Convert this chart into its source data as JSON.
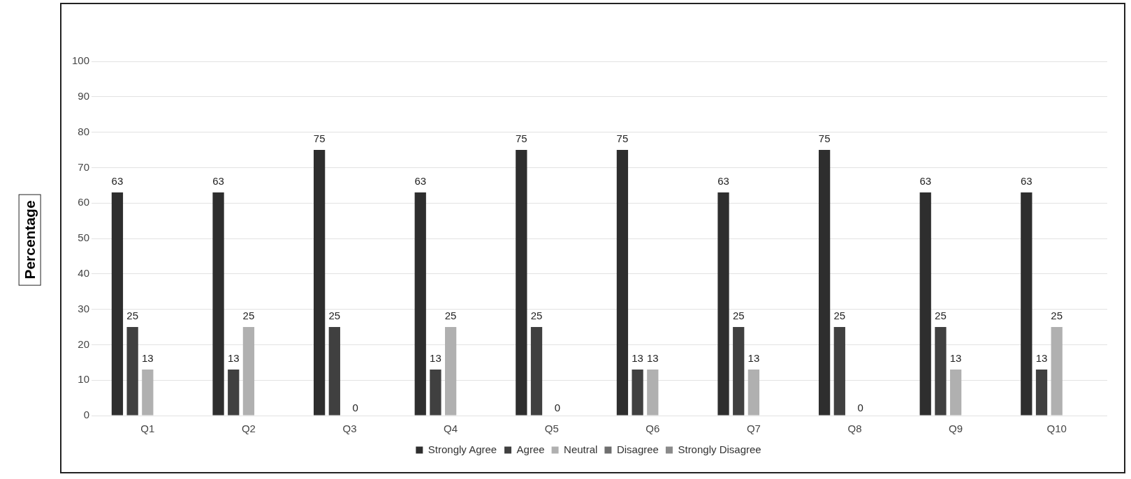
{
  "chart_data": {
    "type": "bar",
    "ylabel": "Percentage",
    "categories": [
      "Q1",
      "Q2",
      "Q3",
      "Q4",
      "Q5",
      "Q6",
      "Q7",
      "Q8",
      "Q9",
      "Q10"
    ],
    "series": [
      {
        "name": "Strongly Agree",
        "color": "#2e2e2e",
        "values": [
          63,
          63,
          75,
          63,
          75,
          75,
          63,
          75,
          63,
          63
        ],
        "value_labels": [
          "63",
          "63",
          "75",
          "63",
          "75",
          "75",
          "63",
          "75",
          "63",
          "63"
        ]
      },
      {
        "name": "Agree",
        "color": "#404040",
        "values": [
          25,
          13,
          25,
          13,
          25,
          13,
          25,
          25,
          25,
          13
        ],
        "value_labels": [
          "25",
          "13",
          "25",
          "13",
          "25",
          "13",
          "25",
          "25",
          "25",
          "13"
        ]
      },
      {
        "name": "Neutral",
        "color": "#b0b0b0",
        "values": [
          13,
          25,
          0,
          25,
          0,
          13,
          13,
          0,
          13,
          25
        ],
        "value_labels": [
          "13",
          "25",
          "0",
          "25",
          "0",
          "13",
          "13",
          "0",
          "13",
          "25"
        ]
      },
      {
        "name": "Disagree",
        "color": "#6e6e6e",
        "values": [
          0,
          0,
          0,
          0,
          0,
          0,
          0,
          0,
          0,
          0
        ]
      },
      {
        "name": "Strongly Disagree",
        "color": "#8a8a8a",
        "values": [
          0,
          0,
          0,
          0,
          0,
          0,
          0,
          0,
          0,
          0
        ]
      }
    ],
    "ylim": [
      0,
      100
    ],
    "yticks": [
      0,
      10,
      20,
      30,
      40,
      50,
      60,
      70,
      80,
      90,
      100
    ],
    "grid": "y",
    "legend": "bottom"
  }
}
